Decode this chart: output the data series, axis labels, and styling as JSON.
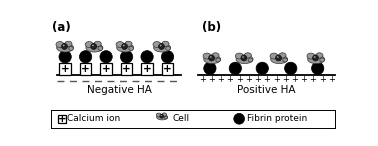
{
  "fig_width": 3.78,
  "fig_height": 1.46,
  "dpi": 100,
  "bg_color": "#ffffff",
  "panel_a_label": "(a)",
  "panel_b_label": "(b)",
  "neg_ha_label": "Negative HA",
  "pos_ha_label": "Positive HA",
  "legend_calcium": "Calcium ion",
  "legend_cell": "Cell",
  "legend_fibrin": "Fibrin protein",
  "surface_color": "#000000",
  "box_color": "#000000",
  "fibrin_color": "#000000",
  "cell_body_color": "#999999",
  "cell_nucleus_color": "#222222",
  "dash_color": "#555555",
  "plus_color": "#000000",
  "label_fontsize": 7.5,
  "panel_fontsize": 8.5
}
